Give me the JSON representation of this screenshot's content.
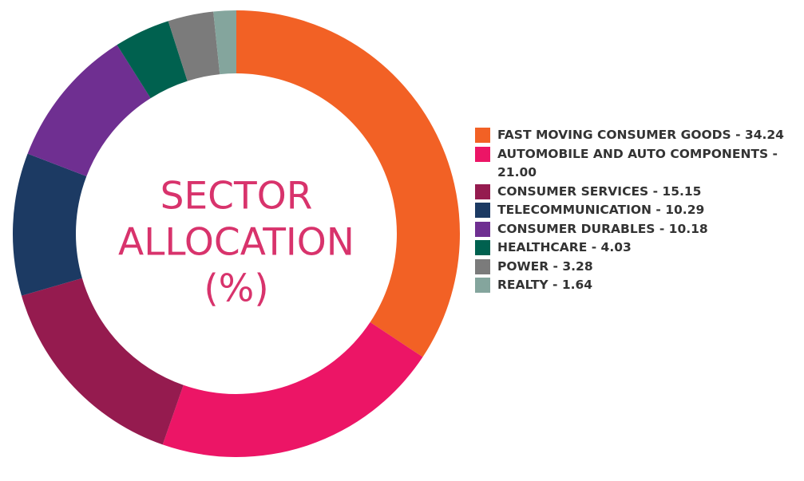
{
  "chart_data": {
    "type": "donut",
    "title": [
      "SECTOR",
      "ALLOCATION",
      "(%)"
    ],
    "categories": [
      "FAST MOVING CONSUMER GOODS - 34.24",
      "AUTOMOBILE AND AUTO COMPONENTS - 21.00",
      "CONSUMER SERVICES - 15.15",
      "TELECOMMUNICATION - 10.29",
      "CONSUMER DURABLES - 10.18",
      "HEALTHCARE - 4.03",
      "POWER - 3.28",
      "REALTY - 1.64"
    ],
    "values": [
      34.24,
      21,
      15.15,
      10.29,
      10.18,
      4.03,
      3.28,
      1.64
    ],
    "colors": [
      "#f26125",
      "#ec1566",
      "#951b4f",
      "#1c3a63",
      "#6f2f91",
      "#00614f",
      "#7b7b7b",
      "#84a59d"
    ],
    "legend": "right"
  }
}
